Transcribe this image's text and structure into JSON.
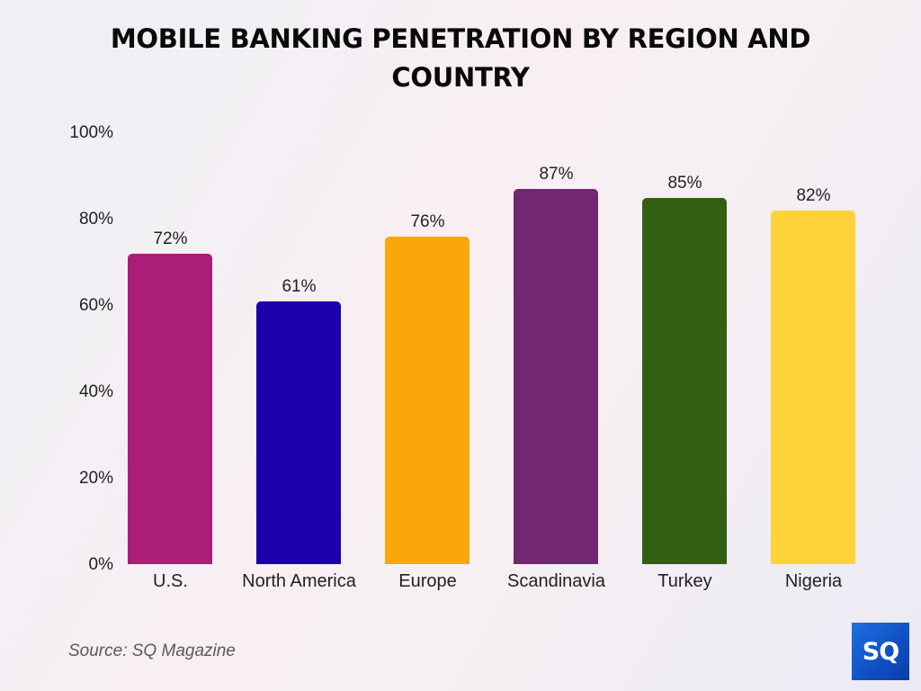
{
  "title": {
    "line1": "MOBILE BANKING PENETRATION BY REGION AND",
    "line2": "COUNTRY"
  },
  "y_axis": {
    "ticks": [
      "100%",
      "80%",
      "60%",
      "40%",
      "20%",
      "0%"
    ]
  },
  "bars": [
    {
      "label": "U.S.",
      "value_label": "72%",
      "value": 72,
      "color": "#ab1e78"
    },
    {
      "label": "North America",
      "value_label": "61%",
      "value": 61,
      "color": "#1a00aa"
    },
    {
      "label": "Europe",
      "value_label": "76%",
      "value": 76,
      "color": "#fba70b"
    },
    {
      "label": "Scandinavia",
      "value_label": "87%",
      "value": 87,
      "color": "#722870"
    },
    {
      "label": "Turkey",
      "value_label": "85%",
      "value": 85,
      "color": "#335f12"
    },
    {
      "label": "Nigeria",
      "value_label": "82%",
      "value": 82,
      "color": "#ffd23a"
    }
  ],
  "source": "Source: SQ Magazine",
  "logo": {
    "text": "SQ",
    "color": "#1560d6"
  },
  "chart_data": {
    "type": "bar",
    "title": "MOBILE BANKING PENETRATION BY REGION AND COUNTRY",
    "categories": [
      "U.S.",
      "North America",
      "Europe",
      "Scandinavia",
      "Turkey",
      "Nigeria"
    ],
    "values": [
      72,
      61,
      76,
      87,
      85,
      82
    ],
    "value_labels": [
      "72%",
      "61%",
      "76%",
      "87%",
      "85%",
      "82%"
    ],
    "colors": [
      "#ab1e78",
      "#1a00aa",
      "#fba70b",
      "#722870",
      "#335f12",
      "#ffd23a"
    ],
    "xlabel": "",
    "ylabel": "",
    "ylim": [
      0,
      100
    ],
    "yticks": [
      "0%",
      "20%",
      "40%",
      "60%",
      "80%",
      "100%"
    ],
    "grid": false,
    "legend": "none",
    "source": "Source: SQ Magazine"
  }
}
